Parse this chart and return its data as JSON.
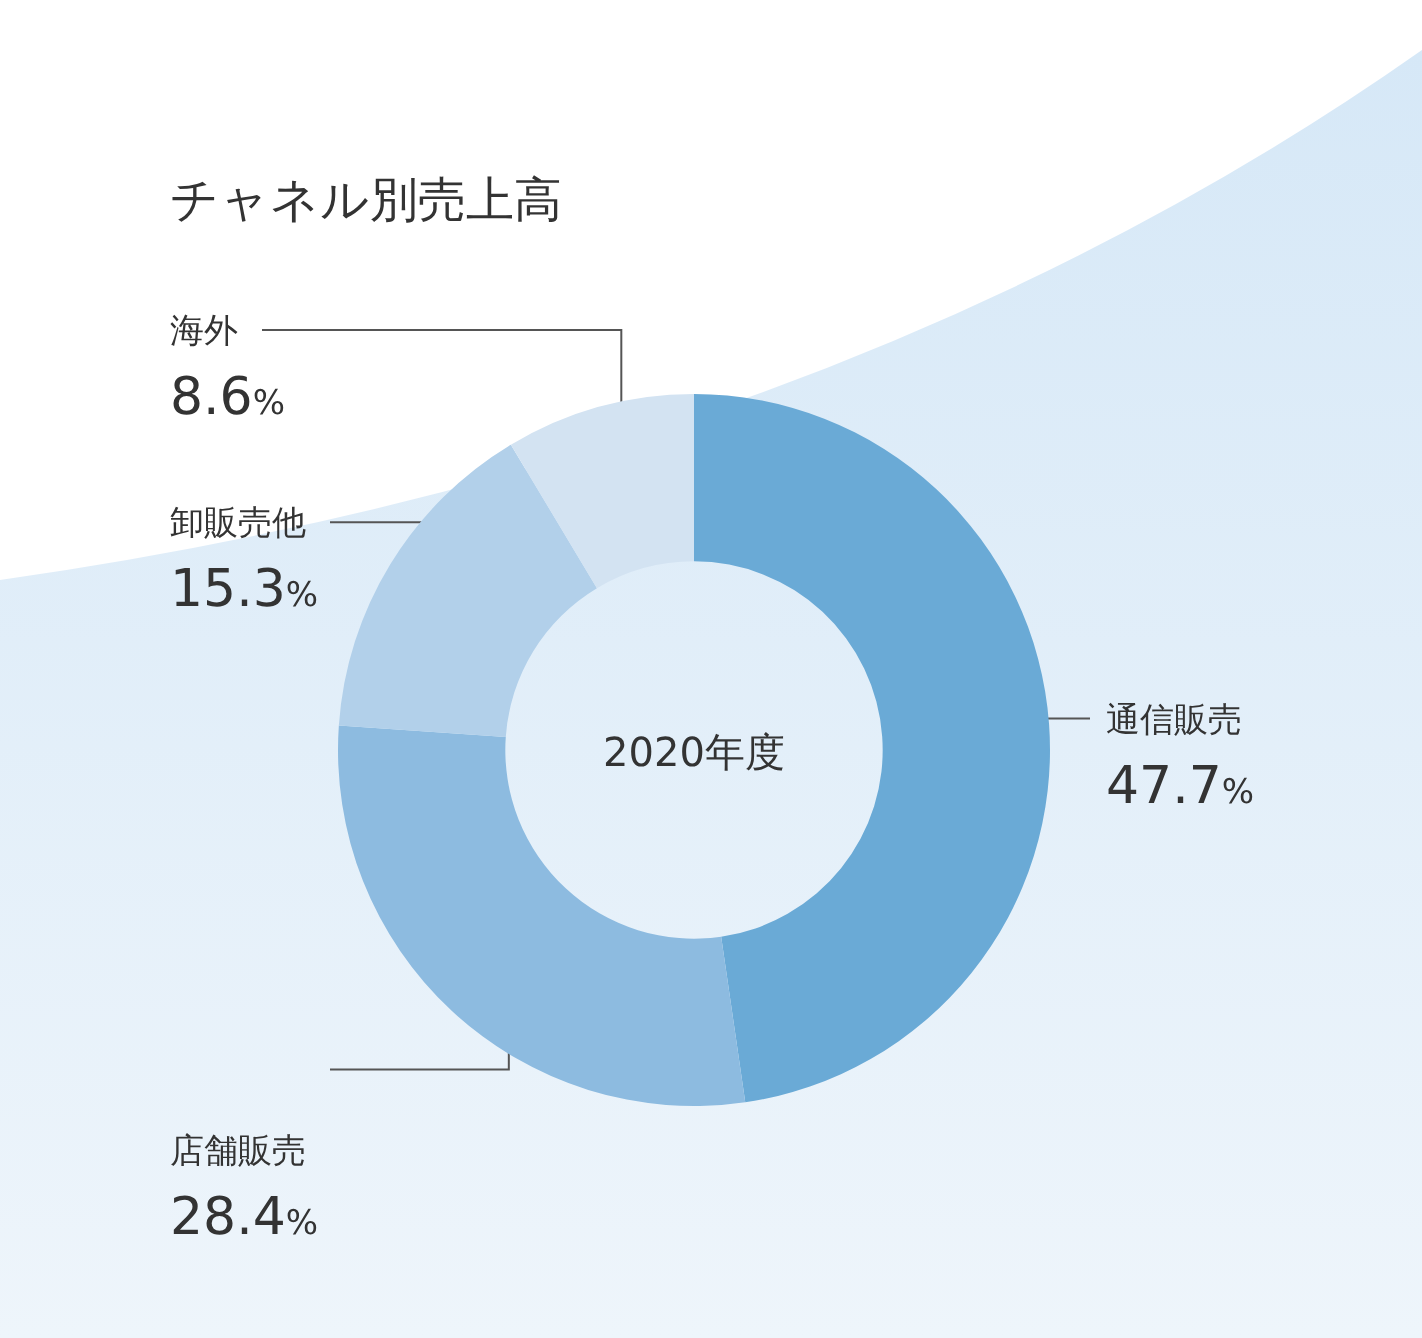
{
  "chart_data": {
    "type": "donut",
    "title": "チャネル別売上高",
    "categories": [
      "通信販売",
      "店舗販売",
      "卸販売他",
      "海外"
    ],
    "values": [
      47.7,
      28.4,
      15.3,
      8.6
    ],
    "colors": [
      "#6aaad6",
      "#8dbbe0",
      "#b2d0ea",
      "#d3e3f2"
    ],
    "value_labels": [
      "47.7%",
      "28.4%",
      "15.3%",
      "8.6%"
    ],
    "annotations": [
      "2020年度"
    ]
  }
}
